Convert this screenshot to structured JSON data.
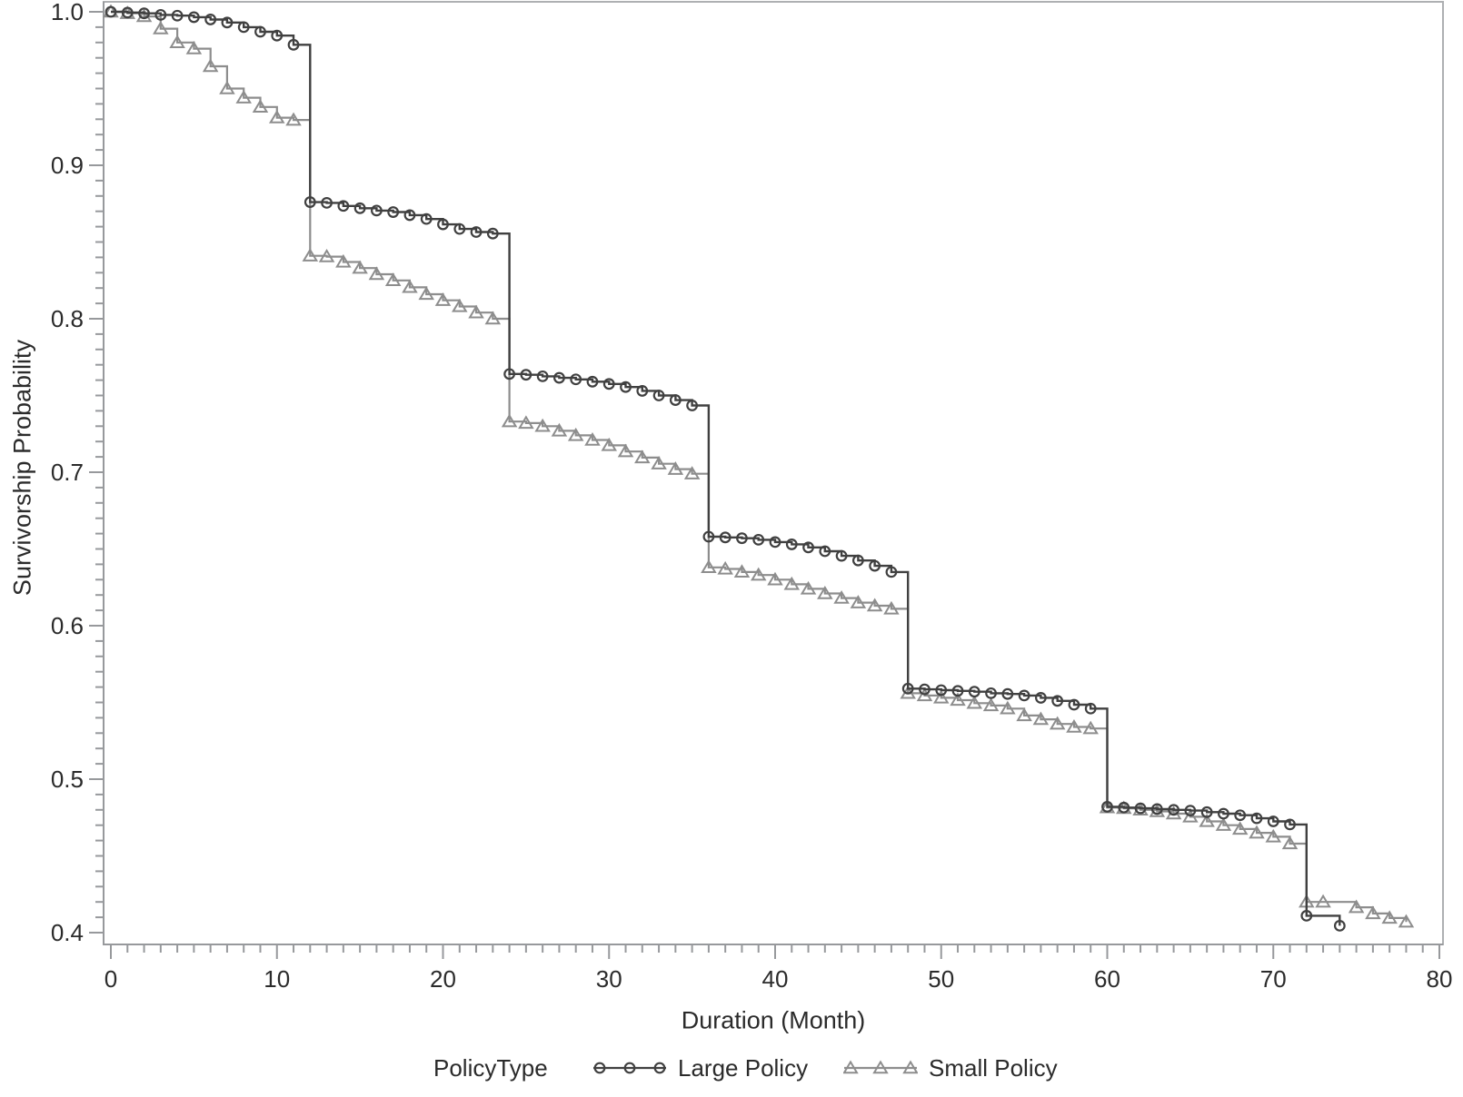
{
  "chart_data": {
    "type": "line",
    "subtype": "step-survival-curve",
    "title": "",
    "xlabel": "Duration (Month)",
    "ylabel": "Survivorship Probability",
    "xlim": [
      0,
      80
    ],
    "ylim": [
      0.4,
      1.0
    ],
    "grid": false,
    "x_major_ticks": [
      0,
      10,
      20,
      30,
      40,
      50,
      60,
      70,
      80
    ],
    "x_minor_tick_step": 1,
    "y_major_ticks": [
      {
        "value": 1.0,
        "label": "1.0"
      },
      {
        "value": 0.9,
        "label": "0.9"
      },
      {
        "value": 0.8,
        "label": "0.8"
      },
      {
        "value": 0.7,
        "label": "0.7"
      },
      {
        "value": 0.6,
        "label": "0.6"
      },
      {
        "value": 0.5,
        "label": "0.5"
      },
      {
        "value": 0.4,
        "label": "0.4"
      }
    ],
    "y_minor_tick_step": 0.01,
    "legend_title": "PolicyType",
    "legend_position": "bottom",
    "colors": {
      "frame": "#aeb0b2",
      "axis": "#97999c",
      "tick": "#97999c",
      "text": "#2b2b2b",
      "background": "#ffffff"
    },
    "series": [
      {
        "name": "Large Policy",
        "marker": "circle",
        "color": "#404040",
        "step": "after",
        "points": [
          [
            0,
            1.0
          ],
          [
            1,
            0.9995
          ],
          [
            2,
            0.999
          ],
          [
            3,
            0.998
          ],
          [
            4,
            0.9975
          ],
          [
            5,
            0.9965
          ],
          [
            6,
            0.995
          ],
          [
            7,
            0.993
          ],
          [
            8,
            0.99
          ],
          [
            9,
            0.987
          ],
          [
            10,
            0.9845
          ],
          [
            11,
            0.9785
          ],
          [
            12,
            0.876
          ],
          [
            13,
            0.8755
          ],
          [
            14,
            0.8735
          ],
          [
            15,
            0.872
          ],
          [
            16,
            0.8705
          ],
          [
            17,
            0.8695
          ],
          [
            18,
            0.8675
          ],
          [
            19,
            0.865
          ],
          [
            20,
            0.8615
          ],
          [
            21,
            0.8585
          ],
          [
            22,
            0.8565
          ],
          [
            23,
            0.8555
          ],
          [
            24,
            0.764
          ],
          [
            25,
            0.7635
          ],
          [
            26,
            0.7625
          ],
          [
            27,
            0.7615
          ],
          [
            28,
            0.7605
          ],
          [
            29,
            0.759
          ],
          [
            30,
            0.7575
          ],
          [
            31,
            0.7555
          ],
          [
            32,
            0.753
          ],
          [
            33,
            0.75
          ],
          [
            34,
            0.747
          ],
          [
            35,
            0.7435
          ],
          [
            36,
            0.658
          ],
          [
            37,
            0.6575
          ],
          [
            38,
            0.657
          ],
          [
            39,
            0.656
          ],
          [
            40,
            0.6545
          ],
          [
            41,
            0.653
          ],
          [
            42,
            0.651
          ],
          [
            43,
            0.6485
          ],
          [
            44,
            0.6455
          ],
          [
            45,
            0.6425
          ],
          [
            46,
            0.639
          ],
          [
            47,
            0.635
          ],
          [
            48,
            0.559
          ],
          [
            49,
            0.5585
          ],
          [
            50,
            0.558
          ],
          [
            51,
            0.5575
          ],
          [
            52,
            0.557
          ],
          [
            53,
            0.556
          ],
          [
            54,
            0.5555
          ],
          [
            55,
            0.5545
          ],
          [
            56,
            0.553
          ],
          [
            57,
            0.551
          ],
          [
            58,
            0.5485
          ],
          [
            59,
            0.546
          ],
          [
            60,
            0.482
          ],
          [
            61,
            0.4815
          ],
          [
            62,
            0.481
          ],
          [
            63,
            0.4805
          ],
          [
            64,
            0.48
          ],
          [
            65,
            0.4795
          ],
          [
            66,
            0.4785
          ],
          [
            67,
            0.4775
          ],
          [
            68,
            0.4765
          ],
          [
            69,
            0.4745
          ],
          [
            70,
            0.4725
          ],
          [
            71,
            0.4705
          ],
          [
            72,
            0.411
          ],
          [
            74,
            0.4045
          ]
        ]
      },
      {
        "name": "Small Policy",
        "marker": "triangle",
        "color": "#8d8d8d",
        "step": "after",
        "points": [
          [
            0,
            1.0
          ],
          [
            1,
            0.999
          ],
          [
            2,
            0.997
          ],
          [
            3,
            0.989
          ],
          [
            4,
            0.98
          ],
          [
            5,
            0.976
          ],
          [
            6,
            0.9645
          ],
          [
            7,
            0.95
          ],
          [
            8,
            0.944
          ],
          [
            9,
            0.938
          ],
          [
            10,
            0.931
          ],
          [
            11,
            0.9295
          ],
          [
            12,
            0.841
          ],
          [
            13,
            0.8405
          ],
          [
            14,
            0.837
          ],
          [
            15,
            0.833
          ],
          [
            16,
            0.829
          ],
          [
            17,
            0.825
          ],
          [
            18,
            0.8205
          ],
          [
            19,
            0.816
          ],
          [
            20,
            0.812
          ],
          [
            21,
            0.808
          ],
          [
            22,
            0.804
          ],
          [
            23,
            0.8
          ],
          [
            24,
            0.733
          ],
          [
            25,
            0.732
          ],
          [
            26,
            0.73
          ],
          [
            27,
            0.727
          ],
          [
            28,
            0.724
          ],
          [
            29,
            0.721
          ],
          [
            30,
            0.7175
          ],
          [
            31,
            0.7135
          ],
          [
            32,
            0.7095
          ],
          [
            33,
            0.7055
          ],
          [
            34,
            0.702
          ],
          [
            35,
            0.699
          ],
          [
            36,
            0.638
          ],
          [
            37,
            0.637
          ],
          [
            38,
            0.635
          ],
          [
            39,
            0.633
          ],
          [
            40,
            0.63
          ],
          [
            41,
            0.627
          ],
          [
            42,
            0.624
          ],
          [
            43,
            0.621
          ],
          [
            44,
            0.618
          ],
          [
            45,
            0.615
          ],
          [
            46,
            0.613
          ],
          [
            47,
            0.611
          ],
          [
            48,
            0.556
          ],
          [
            49,
            0.5545
          ],
          [
            50,
            0.553
          ],
          [
            51,
            0.5515
          ],
          [
            52,
            0.5495
          ],
          [
            53,
            0.548
          ],
          [
            54,
            0.546
          ],
          [
            55,
            0.5415
          ],
          [
            56,
            0.539
          ],
          [
            57,
            0.536
          ],
          [
            58,
            0.534
          ],
          [
            59,
            0.533
          ],
          [
            60,
            0.4815
          ],
          [
            61,
            0.481
          ],
          [
            62,
            0.48
          ],
          [
            63,
            0.479
          ],
          [
            64,
            0.4775
          ],
          [
            65,
            0.4755
          ],
          [
            66,
            0.4725
          ],
          [
            67,
            0.47
          ],
          [
            68,
            0.4675
          ],
          [
            69,
            0.465
          ],
          [
            70,
            0.4625
          ],
          [
            71,
            0.458
          ],
          [
            72,
            0.42
          ],
          [
            73,
            0.42
          ],
          [
            75,
            0.4165
          ],
          [
            76,
            0.4125
          ],
          [
            77,
            0.4095
          ],
          [
            78,
            0.407
          ]
        ]
      }
    ]
  }
}
